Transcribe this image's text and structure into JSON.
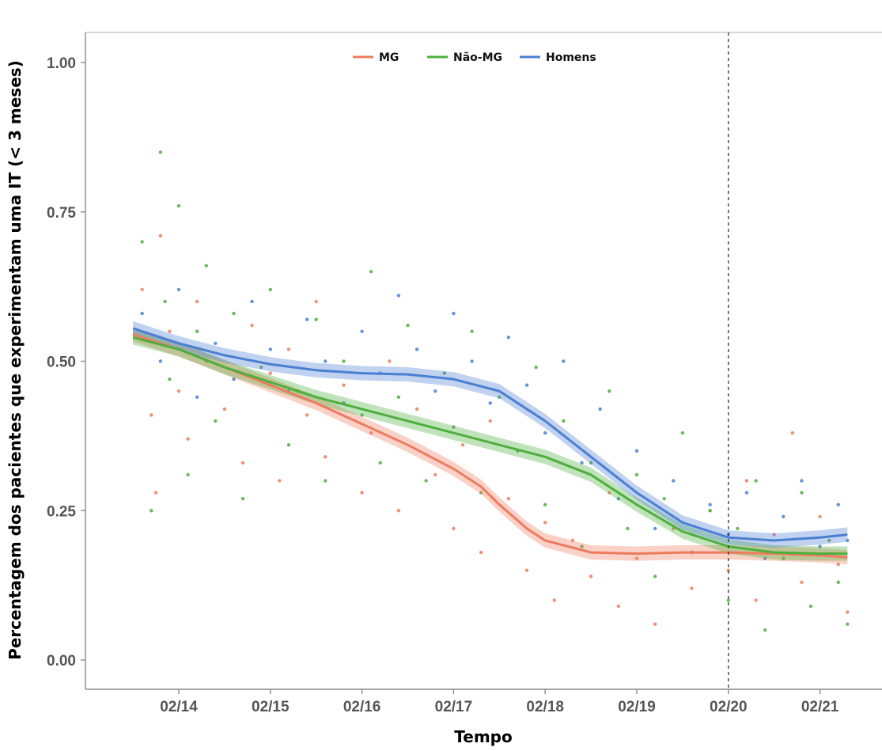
{
  "chart_data": {
    "type": "scatter",
    "title": "",
    "xlabel": "Tempo",
    "ylabel": "Percentagem dos pacientes que experimentam uma IT (< 3 meses)",
    "x_tick_labels": [
      "02/14",
      "02/15",
      "02/16",
      "02/17",
      "02/18",
      "02/19",
      "02/20",
      "02/21"
    ],
    "y_tick_labels": [
      "0.00",
      "0.25",
      "0.50",
      "0.75",
      "1.00"
    ],
    "y_ticks": [
      0,
      0.25,
      0.5,
      0.75,
      1.0
    ],
    "xlim": [
      2013.4,
      2021.55
    ],
    "ylim": [
      -0.04,
      1.05
    ],
    "grid": false,
    "legend_position": "top-center",
    "reference_line_x": 2020.0,
    "series": [
      {
        "name": "MG",
        "color": "#ee7b5e",
        "trend": [
          [
            2013.5,
            0.545
          ],
          [
            2014.0,
            0.52
          ],
          [
            2014.5,
            0.49
          ],
          [
            2015.0,
            0.46
          ],
          [
            2015.5,
            0.43
          ],
          [
            2016.0,
            0.395
          ],
          [
            2016.5,
            0.36
          ],
          [
            2017.0,
            0.32
          ],
          [
            2017.3,
            0.29
          ],
          [
            2017.5,
            0.26
          ],
          [
            2017.8,
            0.22
          ],
          [
            2018.0,
            0.2
          ],
          [
            2018.5,
            0.18
          ],
          [
            2019.0,
            0.178
          ],
          [
            2019.5,
            0.18
          ],
          [
            2020.0,
            0.18
          ],
          [
            2020.5,
            0.178
          ],
          [
            2021.0,
            0.175
          ],
          [
            2021.3,
            0.172
          ]
        ]
      },
      {
        "name": "Não-MG",
        "color": "#4daf3c",
        "trend": [
          [
            2013.5,
            0.54
          ],
          [
            2014.0,
            0.52
          ],
          [
            2014.5,
            0.49
          ],
          [
            2015.0,
            0.465
          ],
          [
            2015.5,
            0.44
          ],
          [
            2016.0,
            0.42
          ],
          [
            2016.5,
            0.4
          ],
          [
            2017.0,
            0.38
          ],
          [
            2017.5,
            0.36
          ],
          [
            2018.0,
            0.34
          ],
          [
            2018.5,
            0.31
          ],
          [
            2018.8,
            0.28
          ],
          [
            2019.0,
            0.26
          ],
          [
            2019.5,
            0.215
          ],
          [
            2020.0,
            0.19
          ],
          [
            2020.5,
            0.18
          ],
          [
            2021.0,
            0.178
          ],
          [
            2021.3,
            0.178
          ]
        ]
      },
      {
        "name": "Homens",
        "color": "#4a7fd1",
        "trend": [
          [
            2013.5,
            0.555
          ],
          [
            2014.0,
            0.53
          ],
          [
            2014.5,
            0.51
          ],
          [
            2015.0,
            0.495
          ],
          [
            2015.5,
            0.485
          ],
          [
            2016.0,
            0.48
          ],
          [
            2016.5,
            0.478
          ],
          [
            2017.0,
            0.47
          ],
          [
            2017.5,
            0.45
          ],
          [
            2018.0,
            0.4
          ],
          [
            2018.5,
            0.34
          ],
          [
            2019.0,
            0.28
          ],
          [
            2019.5,
            0.23
          ],
          [
            2020.0,
            0.205
          ],
          [
            2020.5,
            0.2
          ],
          [
            2021.0,
            0.205
          ],
          [
            2021.3,
            0.21
          ]
        ]
      }
    ],
    "scatter_points": {
      "MG": [
        [
          2013.6,
          0.62
        ],
        [
          2013.7,
          0.41
        ],
        [
          2013.75,
          0.28
        ],
        [
          2013.8,
          0.71
        ],
        [
          2013.9,
          0.55
        ],
        [
          2014.0,
          0.45
        ],
        [
          2014.1,
          0.37
        ],
        [
          2014.2,
          0.6
        ],
        [
          2014.3,
          0.5
        ],
        [
          2014.5,
          0.42
        ],
        [
          2014.7,
          0.33
        ],
        [
          2014.8,
          0.56
        ],
        [
          2015.0,
          0.48
        ],
        [
          2015.1,
          0.3
        ],
        [
          2015.2,
          0.52
        ],
        [
          2015.4,
          0.41
        ],
        [
          2015.5,
          0.6
        ],
        [
          2015.6,
          0.34
        ],
        [
          2015.8,
          0.46
        ],
        [
          2016.0,
          0.28
        ],
        [
          2016.1,
          0.38
        ],
        [
          2016.3,
          0.5
        ],
        [
          2016.4,
          0.25
        ],
        [
          2016.6,
          0.42
        ],
        [
          2016.8,
          0.31
        ],
        [
          2017.0,
          0.22
        ],
        [
          2017.1,
          0.36
        ],
        [
          2017.3,
          0.18
        ],
        [
          2017.4,
          0.4
        ],
        [
          2017.6,
          0.27
        ],
        [
          2017.8,
          0.15
        ],
        [
          2018.0,
          0.23
        ],
        [
          2018.1,
          0.1
        ],
        [
          2018.3,
          0.2
        ],
        [
          2018.5,
          0.14
        ],
        [
          2018.7,
          0.28
        ],
        [
          2018.8,
          0.09
        ],
        [
          2019.0,
          0.17
        ],
        [
          2019.2,
          0.06
        ],
        [
          2019.4,
          0.22
        ],
        [
          2019.6,
          0.12
        ],
        [
          2019.8,
          0.25
        ],
        [
          2020.0,
          0.15
        ],
        [
          2020.2,
          0.3
        ],
        [
          2020.3,
          0.1
        ],
        [
          2020.5,
          0.21
        ],
        [
          2020.7,
          0.38
        ],
        [
          2020.8,
          0.13
        ],
        [
          2021.0,
          0.24
        ],
        [
          2021.2,
          0.16
        ],
        [
          2021.3,
          0.08
        ]
      ],
      "Não-MG": [
        [
          2013.6,
          0.7
        ],
        [
          2013.7,
          0.25
        ],
        [
          2013.8,
          0.85
        ],
        [
          2013.85,
          0.6
        ],
        [
          2013.9,
          0.47
        ],
        [
          2014.0,
          0.76
        ],
        [
          2014.1,
          0.31
        ],
        [
          2014.2,
          0.55
        ],
        [
          2014.3,
          0.66
        ],
        [
          2014.4,
          0.4
        ],
        [
          2014.6,
          0.58
        ],
        [
          2014.7,
          0.27
        ],
        [
          2014.9,
          0.49
        ],
        [
          2015.0,
          0.62
        ],
        [
          2015.2,
          0.36
        ],
        [
          2015.3,
          0.45
        ],
        [
          2015.5,
          0.57
        ],
        [
          2015.6,
          0.3
        ],
        [
          2015.8,
          0.5
        ],
        [
          2016.0,
          0.41
        ],
        [
          2016.1,
          0.65
        ],
        [
          2016.2,
          0.33
        ],
        [
          2016.4,
          0.44
        ],
        [
          2016.5,
          0.56
        ],
        [
          2016.7,
          0.3
        ],
        [
          2016.9,
          0.48
        ],
        [
          2017.0,
          0.39
        ],
        [
          2017.2,
          0.55
        ],
        [
          2017.3,
          0.28
        ],
        [
          2017.5,
          0.44
        ],
        [
          2017.7,
          0.35
        ],
        [
          2017.9,
          0.49
        ],
        [
          2018.0,
          0.26
        ],
        [
          2018.2,
          0.4
        ],
        [
          2018.4,
          0.19
        ],
        [
          2018.5,
          0.33
        ],
        [
          2018.7,
          0.45
        ],
        [
          2018.9,
          0.22
        ],
        [
          2019.0,
          0.31
        ],
        [
          2019.2,
          0.14
        ],
        [
          2019.3,
          0.27
        ],
        [
          2019.5,
          0.38
        ],
        [
          2019.6,
          0.18
        ],
        [
          2019.8,
          0.25
        ],
        [
          2020.0,
          0.1
        ],
        [
          2020.1,
          0.22
        ],
        [
          2020.3,
          0.3
        ],
        [
          2020.4,
          0.05
        ],
        [
          2020.6,
          0.17
        ],
        [
          2020.8,
          0.28
        ],
        [
          2020.9,
          0.09
        ],
        [
          2021.1,
          0.2
        ],
        [
          2021.2,
          0.13
        ],
        [
          2021.3,
          0.06
        ]
      ],
      "Homens": [
        [
          2013.6,
          0.58
        ],
        [
          2013.8,
          0.5
        ],
        [
          2014.0,
          0.62
        ],
        [
          2014.2,
          0.44
        ],
        [
          2014.4,
          0.53
        ],
        [
          2014.6,
          0.47
        ],
        [
          2014.8,
          0.6
        ],
        [
          2015.0,
          0.52
        ],
        [
          2015.2,
          0.45
        ],
        [
          2015.4,
          0.57
        ],
        [
          2015.6,
          0.5
        ],
        [
          2015.8,
          0.43
        ],
        [
          2016.0,
          0.55
        ],
        [
          2016.2,
          0.48
        ],
        [
          2016.4,
          0.61
        ],
        [
          2016.6,
          0.52
        ],
        [
          2016.8,
          0.45
        ],
        [
          2017.0,
          0.58
        ],
        [
          2017.2,
          0.5
        ],
        [
          2017.4,
          0.43
        ],
        [
          2017.6,
          0.54
        ],
        [
          2017.8,
          0.46
        ],
        [
          2018.0,
          0.38
        ],
        [
          2018.2,
          0.5
        ],
        [
          2018.4,
          0.33
        ],
        [
          2018.6,
          0.42
        ],
        [
          2018.8,
          0.27
        ],
        [
          2019.0,
          0.35
        ],
        [
          2019.2,
          0.22
        ],
        [
          2019.4,
          0.3
        ],
        [
          2019.6,
          0.18
        ],
        [
          2019.8,
          0.26
        ],
        [
          2020.0,
          0.21
        ],
        [
          2020.2,
          0.28
        ],
        [
          2020.4,
          0.17
        ],
        [
          2020.6,
          0.24
        ],
        [
          2020.8,
          0.3
        ],
        [
          2021.0,
          0.19
        ],
        [
          2021.2,
          0.26
        ],
        [
          2021.3,
          0.2
        ]
      ]
    }
  }
}
